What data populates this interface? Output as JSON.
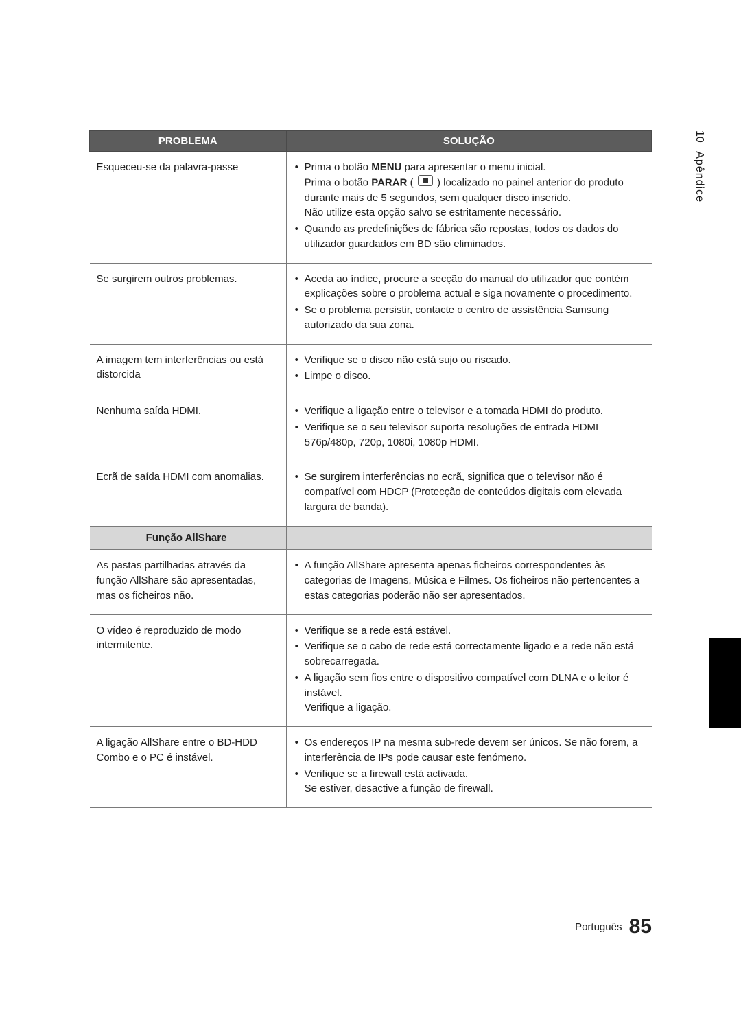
{
  "colors": {
    "header_bg": "#5c5c5c",
    "header_text": "#ffffff",
    "section_bg": "#d7d7d7",
    "border": "#7a7a7a",
    "text": "#222222",
    "page_bg": "#ffffff",
    "black_bar": "#000000"
  },
  "typography": {
    "body_fontsize": 15,
    "header_fontsize": 15,
    "footer_label_fontsize": 15,
    "page_num_fontsize": 30
  },
  "side_tab": {
    "chapter_num": "10",
    "chapter_name": "Apêndice"
  },
  "table": {
    "headers": {
      "problem": "PROBLEMA",
      "solution": "SOLUÇÃO"
    },
    "rows": [
      {
        "problem": "Esqueceu-se da palavra-passe",
        "solution_items": [
          {
            "richtext": true,
            "parts": [
              {
                "t": "Prima o botão "
              },
              {
                "t": "MENU",
                "bold": true
              },
              {
                "t": " para apresentar o menu inicial.\nPrima o botão "
              },
              {
                "t": "PARAR",
                "bold": true
              },
              {
                "t": " ( "
              },
              {
                "icon": "stop-button-icon"
              },
              {
                "t": " ) localizado no painel anterior do produto durante mais de 5 segundos, sem qualquer disco inserido.\nNão utilize esta opção salvo se estritamente necessário."
              }
            ]
          },
          {
            "text": "Quando as predefinições de fábrica são repostas, todos os dados do utilizador guardados em BD são eliminados."
          }
        ]
      },
      {
        "problem": "Se surgirem outros problemas.",
        "solution_items": [
          {
            "text": "Aceda ao índice, procure a secção do manual do utilizador que contém explicações sobre o problema actual e siga novamente o procedimento."
          },
          {
            "text": "Se o problema persistir, contacte o centro de assistência Samsung autorizado da sua zona."
          }
        ]
      },
      {
        "problem": "A imagem tem interferências ou está distorcida",
        "solution_items": [
          {
            "text": "Verifique se o disco não está sujo ou riscado."
          },
          {
            "text": "Limpe o disco."
          }
        ]
      },
      {
        "problem": "Nenhuma saída HDMI.",
        "solution_items": [
          {
            "text": "Verifique a ligação entre o televisor e a tomada HDMI do produto."
          },
          {
            "text": "Verifique se o seu televisor suporta resoluções de entrada HDMI 576p/480p, 720p, 1080i, 1080p HDMI."
          }
        ]
      },
      {
        "problem": "Ecrã de saída HDMI com anomalias.",
        "solution_items": [
          {
            "text": "Se surgirem interferências no ecrã, significa que o televisor não é compatível com HDCP (Protecção de conteúdos digitais com elevada largura de banda)."
          }
        ]
      },
      {
        "section": true,
        "label": "Função AllShare"
      },
      {
        "problem": "As pastas partilhadas através da função AllShare são apresentadas, mas os ficheiros não.",
        "solution_items": [
          {
            "text": "A função AllShare apresenta apenas ficheiros correspondentes às categorias de Imagens, Música e Filmes. Os ficheiros não pertencentes a estas categorias poderão não ser apresentados."
          }
        ]
      },
      {
        "problem": "O vídeo é reproduzido de modo intermitente.",
        "solution_items": [
          {
            "text": "Verifique se a rede está estável."
          },
          {
            "text": "Verifique se o cabo de rede está correctamente ligado e a rede não está sobrecarregada."
          },
          {
            "text": "A ligação sem fios entre o dispositivo compatível com DLNA e o leitor é instável.\nVerifique a ligação."
          }
        ]
      },
      {
        "problem": "A ligação AllShare entre o BD-HDD Combo e o PC é instável.",
        "solution_items": [
          {
            "text": "Os endereços IP na mesma sub-rede devem ser únicos. Se não forem, a interferência de IPs pode causar este fenómeno."
          },
          {
            "text": "Verifique se a firewall está activada.\nSe estiver, desactive a função de firewall."
          }
        ]
      }
    ]
  },
  "footer": {
    "language": "Português",
    "page_number": "85"
  }
}
